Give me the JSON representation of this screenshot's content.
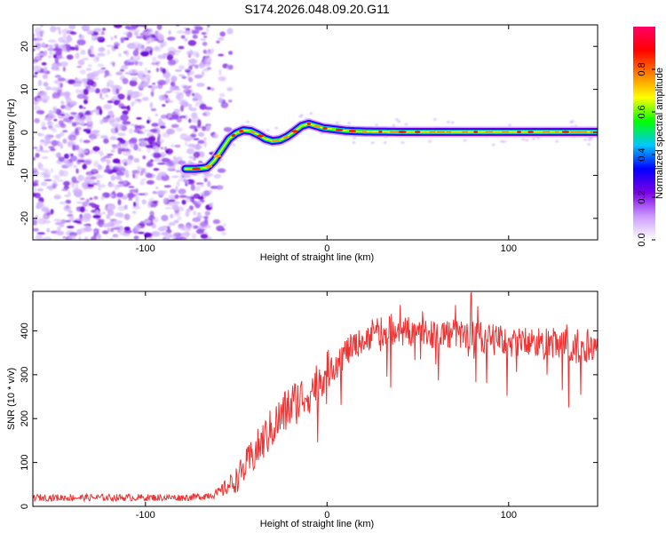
{
  "title": "S174.2026.048.09.20.G11",
  "chart_data": [
    {
      "type": "heatmap",
      "xlabel": "Height of straight line (km)",
      "ylabel": "Frequency (Hz)",
      "xlim": [
        -162,
        149
      ],
      "ylim": [
        -25,
        25
      ],
      "x_ticks": [
        -100,
        0,
        100
      ],
      "y_ticks": [
        -20,
        -10,
        0,
        10,
        20
      ],
      "x_tick_labels": [
        "-100",
        "0",
        "100"
      ],
      "y_tick_labels": [
        "-20",
        "-10",
        "0",
        "10",
        "20"
      ],
      "noise_region_x": [
        -162,
        -65
      ],
      "ridge": {
        "x": [
          -78,
          -72,
          -66,
          -62,
          -58,
          -54,
          -50,
          -46,
          -42,
          -38,
          -34,
          -30,
          -26,
          -22,
          -18,
          -14,
          -10,
          -6,
          -2,
          2,
          6,
          10,
          14,
          20,
          40,
          60,
          80,
          100,
          120,
          149
        ],
        "freq": [
          -8.5,
          -8.5,
          -8.2,
          -6.5,
          -4.0,
          -1.5,
          -0.2,
          0.5,
          0.3,
          -0.5,
          -1.5,
          -2.0,
          -1.8,
          -1.0,
          0.2,
          1.5,
          2.0,
          1.5,
          1.0,
          0.8,
          0.6,
          0.4,
          0.3,
          0.2,
          0.1,
          0.1,
          0.1,
          0.1,
          0.1,
          0.1
        ]
      },
      "colorbar": {
        "label": "Normalized spectral amplitude",
        "range": [
          0,
          1
        ],
        "ticks": [
          0.0,
          0.2,
          0.4,
          0.6,
          0.8
        ],
        "tick_labels": [
          "0.0",
          "0.2",
          "0.4",
          "0.6",
          "0.8"
        ],
        "colors": [
          "#ffffff",
          "#cc99ff",
          "#7a00e6",
          "#0000ff",
          "#00c8ff",
          "#00ff00",
          "#ffff00",
          "#ff8000",
          "#ff0000",
          "#ff0066"
        ]
      }
    },
    {
      "type": "line",
      "xlabel": "Height of straight line (km)",
      "ylabel": "SNR (10 * v/v)",
      "xlim": [
        -162,
        149
      ],
      "ylim": [
        0,
        490
      ],
      "x_ticks": [
        -100,
        0,
        100
      ],
      "y_ticks": [
        0,
        100,
        200,
        300,
        400
      ],
      "x_tick_labels": [
        "-100",
        "0",
        "100"
      ],
      "y_tick_labels": [
        "0",
        "100",
        "200",
        "300",
        "400"
      ],
      "color": "#ee3333",
      "series": [
        {
          "name": "SNR",
          "x": [
            -162,
            -140,
            -120,
            -100,
            -80,
            -70,
            -60,
            -50,
            -40,
            -30,
            -20,
            -10,
            0,
            10,
            20,
            30,
            40,
            60,
            80,
            100,
            120,
            140,
            149
          ],
          "mean": [
            20,
            20,
            20,
            20,
            20,
            22,
            30,
            60,
            120,
            180,
            230,
            260,
            310,
            350,
            380,
            400,
            400,
            395,
            390,
            375,
            370,
            360,
            360
          ],
          "spread": [
            8,
            8,
            8,
            8,
            8,
            8,
            12,
            30,
            45,
            50,
            55,
            50,
            45,
            35,
            30,
            35,
            35,
            35,
            35,
            35,
            40,
            45,
            45
          ]
        }
      ]
    }
  ]
}
